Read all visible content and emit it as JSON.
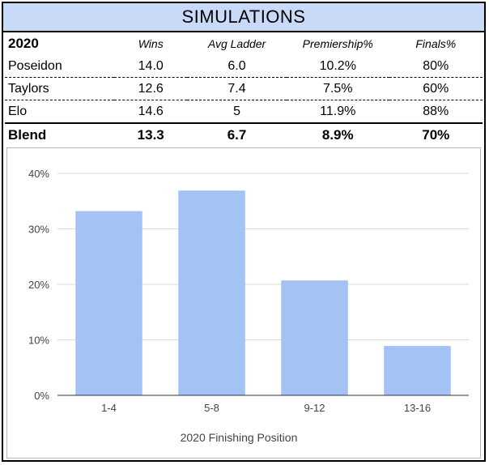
{
  "title": "SIMULATIONS",
  "table": {
    "headers": [
      "2020",
      "Wins",
      "Avg Ladder",
      "Premiership%",
      "Finals%"
    ],
    "rows": [
      [
        "Poseidon",
        "14.0",
        "6.0",
        "10.2%",
        "80%"
      ],
      [
        "Taylors",
        "12.6",
        "7.4",
        "7.5%",
        "60%"
      ],
      [
        "Elo",
        "14.6",
        "5",
        "11.9%",
        "88%"
      ]
    ],
    "blend": [
      "Blend",
      "13.3",
      "6.7",
      "8.9%",
      "70%"
    ]
  },
  "colors": {
    "header_bg": "#c9daf8",
    "bar": "#a4c2f4",
    "grid": "#d9d9d9",
    "axis_text": "#444444"
  },
  "chart_data": {
    "type": "bar",
    "categories": [
      "1-4",
      "5-8",
      "9-12",
      "13-16"
    ],
    "values": [
      33.2,
      36.9,
      20.7,
      8.9
    ],
    "title": "",
    "xlabel": "2020 Finishing Position",
    "ylabel": "",
    "ylim": [
      0,
      40
    ],
    "yticks": [
      "0%",
      "10%",
      "20%",
      "30%",
      "40%"
    ],
    "grid": true,
    "legend": "none"
  }
}
